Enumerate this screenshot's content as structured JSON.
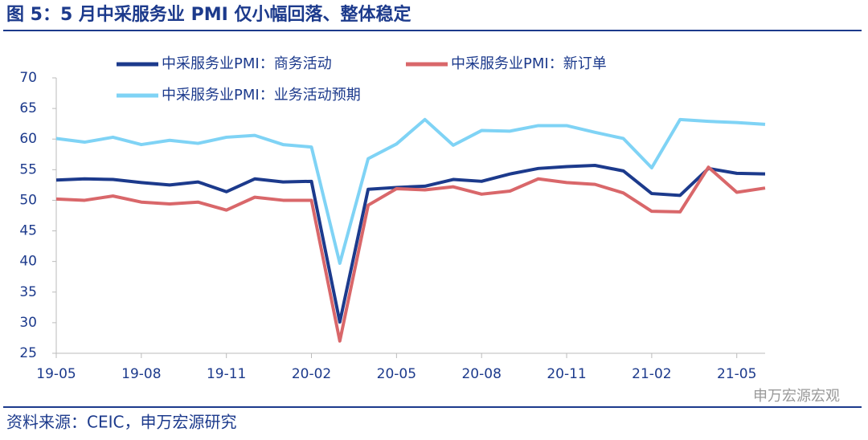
{
  "chart_data": {
    "type": "line",
    "title": "图 5：5 月中采服务业 PMI 仅小幅回落、整体稳定",
    "source": "资料来源：CEIC，申万宏源研究",
    "watermark": "申万宏源宏观",
    "categories": [
      "19-05",
      null,
      null,
      "19-08",
      null,
      null,
      "19-11",
      null,
      null,
      "20-02",
      null,
      null,
      "20-05",
      null,
      null,
      "20-08",
      null,
      null,
      "20-11",
      null,
      null,
      "21-02",
      null,
      null,
      "21-05",
      null
    ],
    "series": [
      {
        "name": "中采服务业PMI：商务活动",
        "color": "#1c3a8c",
        "values": [
          53.3,
          53.5,
          53.4,
          52.9,
          52.5,
          53.0,
          51.4,
          53.5,
          53.0,
          53.1,
          30.1,
          51.8,
          52.1,
          52.3,
          53.4,
          53.1,
          54.3,
          55.2,
          55.5,
          55.7,
          54.8,
          51.1,
          50.8,
          55.2,
          54.4,
          54.3
        ]
      },
      {
        "name": "中采服务业PMI：新订单",
        "color": "#d9676a",
        "values": [
          50.2,
          50.0,
          50.7,
          49.7,
          49.4,
          49.7,
          48.4,
          50.5,
          50.0,
          50.0,
          27.0,
          49.2,
          51.9,
          51.7,
          52.2,
          51.0,
          51.5,
          53.5,
          52.9,
          52.6,
          51.2,
          48.2,
          48.1,
          55.4,
          51.3,
          52.0
        ]
      },
      {
        "name": "中采服务业PMI：业务活动预期",
        "color": "#7fd3f5",
        "values": [
          60.1,
          59.5,
          60.3,
          59.1,
          59.8,
          59.3,
          60.3,
          60.6,
          59.1,
          58.7,
          39.7,
          56.8,
          59.2,
          63.2,
          59.0,
          61.4,
          61.3,
          62.2,
          62.2,
          61.1,
          60.1,
          55.3,
          63.2,
          62.9,
          62.7,
          62.4
        ]
      }
    ],
    "ylim": [
      25,
      70
    ],
    "yticks": [
      25,
      30,
      35,
      40,
      45,
      50,
      55,
      60,
      65,
      70
    ],
    "grid": false
  }
}
